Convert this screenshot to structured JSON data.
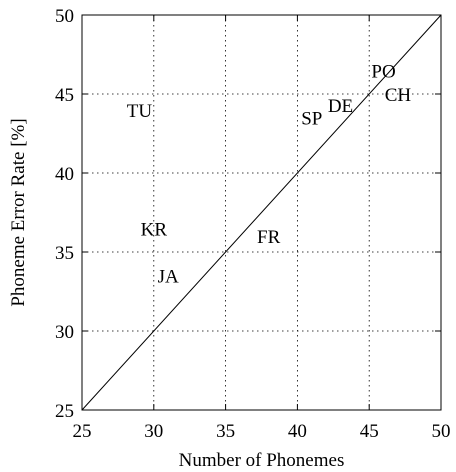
{
  "chart_data": {
    "type": "scatter",
    "title": "",
    "xlabel": "Number of Phonemes",
    "ylabel": "Phoneme Error Rate [%]",
    "xlim": [
      25,
      50
    ],
    "ylim": [
      25,
      50
    ],
    "xticks": [
      25,
      30,
      35,
      40,
      45,
      50
    ],
    "yticks": [
      25,
      30,
      35,
      40,
      45,
      50
    ],
    "grid": true,
    "reference_line": {
      "from": [
        25,
        25
      ],
      "to": [
        50,
        50
      ]
    },
    "points": [
      {
        "label": "TU",
        "x": 29,
        "y": 44
      },
      {
        "label": "KR",
        "x": 30,
        "y": 36.5
      },
      {
        "label": "JA",
        "x": 31,
        "y": 33.5
      },
      {
        "label": "FR",
        "x": 38,
        "y": 36
      },
      {
        "label": "SP",
        "x": 41,
        "y": 43.5
      },
      {
        "label": "DE",
        "x": 43,
        "y": 44.3
      },
      {
        "label": "PO",
        "x": 46,
        "y": 46.5
      },
      {
        "label": "CH",
        "x": 47,
        "y": 45
      }
    ]
  }
}
